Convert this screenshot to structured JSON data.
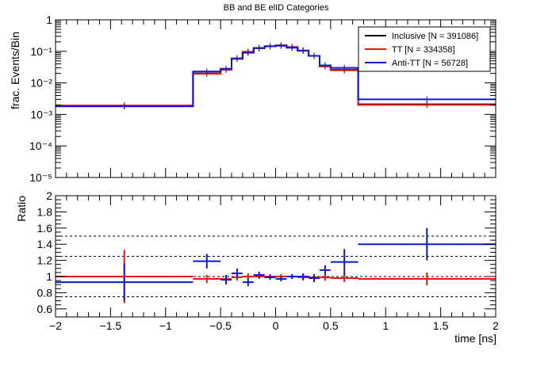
{
  "colors": {
    "inclusive": "#000000",
    "tt": "#e8180c",
    "antitt": "#0c19d6",
    "frame": "#000000",
    "background": "#ffffff"
  },
  "chart_data": [
    {
      "type": "line",
      "title": "BB and BE elID Categories",
      "xlabel": "",
      "ylabel": "frac. Events/Bin",
      "xlim": [
        -2,
        2
      ],
      "ylim": [
        1e-05,
        1
      ],
      "yscale": "log",
      "grid": false,
      "legend_position": "top-right",
      "bin_edges": [
        -2,
        -0.75,
        -0.5,
        -0.4,
        -0.3,
        -0.2,
        -0.1,
        0,
        0.1,
        0.2,
        0.3,
        0.4,
        0.5,
        0.75,
        2
      ],
      "y_tick_labels": [
        "1",
        "10⁻¹",
        "10⁻²",
        "10⁻³",
        "10⁻⁴",
        "10⁻⁵"
      ],
      "x_tick_labels": [
        "",
        "",
        "",
        "",
        "",
        "",
        "",
        "",
        ""
      ],
      "series": [
        {
          "name": "Inclusive [N = 391086]",
          "color_key": "inclusive",
          "values": [
            0.0019,
            0.02,
            0.027,
            0.058,
            0.095,
            0.125,
            0.145,
            0.155,
            0.135,
            0.105,
            0.072,
            0.034,
            0.026,
            0.0021
          ]
        },
        {
          "name": "TT [N = 334358]",
          "color_key": "tt",
          "values": [
            0.0019,
            0.0195,
            0.026,
            0.058,
            0.097,
            0.126,
            0.145,
            0.156,
            0.138,
            0.106,
            0.072,
            0.033,
            0.025,
            0.002
          ]
        },
        {
          "name": "Anti-TT [N = 56728]",
          "color_key": "antitt",
          "values": [
            0.0018,
            0.023,
            0.028,
            0.06,
            0.09,
            0.128,
            0.145,
            0.15,
            0.13,
            0.105,
            0.072,
            0.036,
            0.03,
            0.003
          ]
        }
      ]
    },
    {
      "type": "scatter",
      "title": "",
      "xlabel": "time [ns]",
      "ylabel": "Ratio",
      "xlim": [
        -2,
        2
      ],
      "ylim": [
        0.5,
        2
      ],
      "grid": false,
      "reference_lines": [
        0.75,
        1,
        1.25,
        1.5
      ],
      "x_tick_labels": [
        "−2",
        "−1.5",
        "−1",
        "−0.5",
        "0",
        "0.5",
        "1",
        "1.5",
        "2"
      ],
      "y_tick_labels": [
        "2",
        "1.8",
        "1.6",
        "1.4",
        "1.2",
        "1",
        "0.8",
        "0.6"
      ],
      "series": [
        {
          "name": "",
          "color_key": "tt",
          "points": [
            {
              "x": -1.375,
              "xerr": 0.625,
              "y": 1.0,
              "yerr": 0.33
            },
            {
              "x": -0.625,
              "xerr": 0.125,
              "y": 0.97,
              "yerr": 0.05
            },
            {
              "x": -0.45,
              "xerr": 0.05,
              "y": 0.97,
              "yerr": 0.05
            },
            {
              "x": -0.35,
              "xerr": 0.05,
              "y": 0.99,
              "yerr": 0.04
            },
            {
              "x": -0.25,
              "xerr": 0.05,
              "y": 1.0,
              "yerr": 0.04
            },
            {
              "x": -0.15,
              "xerr": 0.05,
              "y": 1.0,
              "yerr": 0.03
            },
            {
              "x": -0.05,
              "xerr": 0.05,
              "y": 1.0,
              "yerr": 0.03
            },
            {
              "x": 0.05,
              "xerr": 0.05,
              "y": 1.0,
              "yerr": 0.03
            },
            {
              "x": 0.15,
              "xerr": 0.05,
              "y": 1.0,
              "yerr": 0.03
            },
            {
              "x": 0.25,
              "xerr": 0.05,
              "y": 0.99,
              "yerr": 0.04
            },
            {
              "x": 0.35,
              "xerr": 0.05,
              "y": 0.99,
              "yerr": 0.04
            },
            {
              "x": 0.45,
              "xerr": 0.05,
              "y": 0.99,
              "yerr": 0.04
            },
            {
              "x": 0.625,
              "xerr": 0.125,
              "y": 0.98,
              "yerr": 0.05
            },
            {
              "x": 1.375,
              "xerr": 0.625,
              "y": 0.97,
              "yerr": 0.08
            }
          ]
        },
        {
          "name": "",
          "color_key": "antitt",
          "points": [
            {
              "x": -1.375,
              "xerr": 0.625,
              "y": 0.93,
              "yerr": 0.23
            },
            {
              "x": -0.625,
              "xerr": 0.125,
              "y": 1.19,
              "yerr": 0.09
            },
            {
              "x": -0.45,
              "xerr": 0.05,
              "y": 0.96,
              "yerr": 0.06
            },
            {
              "x": -0.35,
              "xerr": 0.05,
              "y": 1.04,
              "yerr": 0.06
            },
            {
              "x": -0.25,
              "xerr": 0.05,
              "y": 0.93,
              "yerr": 0.05
            },
            {
              "x": -0.15,
              "xerr": 0.05,
              "y": 1.02,
              "yerr": 0.04
            },
            {
              "x": -0.05,
              "xerr": 0.05,
              "y": 0.99,
              "yerr": 0.03
            },
            {
              "x": 0.05,
              "xerr": 0.05,
              "y": 0.97,
              "yerr": 0.03
            },
            {
              "x": 0.15,
              "xerr": 0.05,
              "y": 1.0,
              "yerr": 0.03
            },
            {
              "x": 0.25,
              "xerr": 0.05,
              "y": 1.0,
              "yerr": 0.04
            },
            {
              "x": 0.35,
              "xerr": 0.05,
              "y": 0.98,
              "yerr": 0.05
            },
            {
              "x": 0.45,
              "xerr": 0.05,
              "y": 1.08,
              "yerr": 0.06
            },
            {
              "x": 0.625,
              "xerr": 0.125,
              "y": 1.18,
              "yerr": 0.16
            },
            {
              "x": 1.375,
              "xerr": 0.625,
              "y": 1.4,
              "yerr": 0.2
            }
          ]
        }
      ]
    }
  ]
}
